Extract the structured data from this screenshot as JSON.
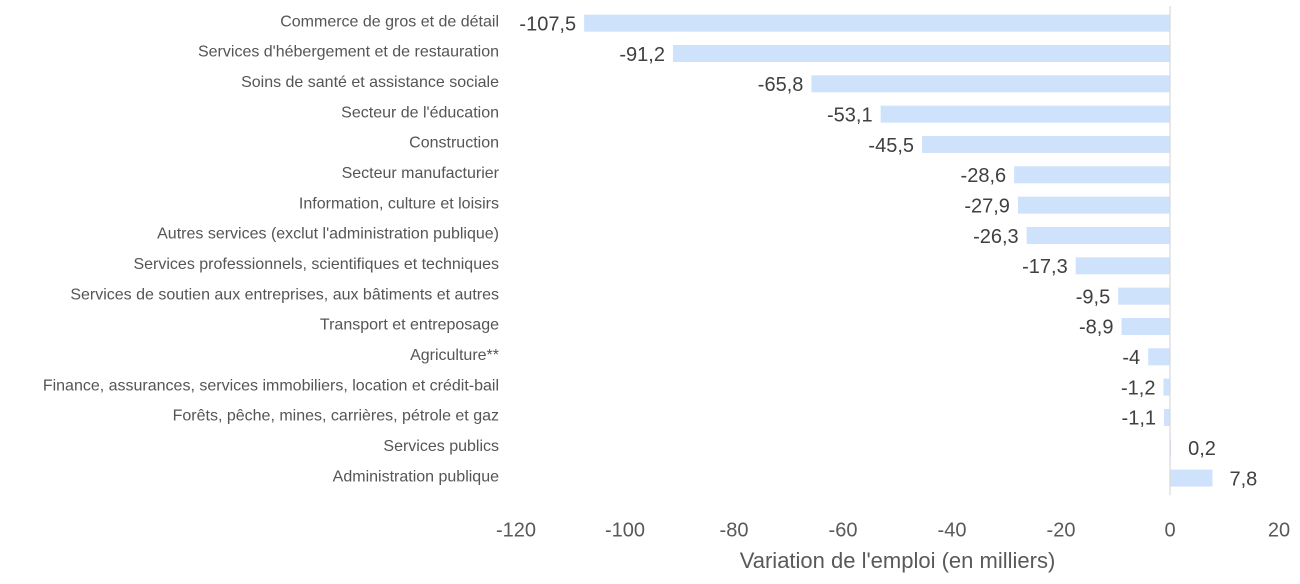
{
  "chart_data": {
    "type": "bar",
    "orientation": "horizontal",
    "categories": [
      "Commerce de gros et de détail",
      "Services d'hébergement et de restauration",
      "Soins de santé et assistance sociale",
      "Secteur de l'éducation",
      "Construction",
      "Secteur manufacturier",
      "Information, culture et loisirs",
      "Autres services (exclut l'administration publique)",
      "Services professionnels, scientifiques et techniques",
      "Services de soutien aux entreprises, aux bâtiments et autres",
      "Transport et entreposage",
      "Agriculture**",
      "Finance, assurances, services immobiliers, location et crédit-bail",
      "Forêts, pêche, mines, carrières, pétrole et gaz",
      "Services publics",
      "Administration publique"
    ],
    "values": [
      -107.5,
      -91.2,
      -65.8,
      -53.1,
      -45.5,
      -28.6,
      -27.9,
      -26.3,
      -17.3,
      -9.5,
      -8.9,
      -4,
      -1.2,
      -1.1,
      0.2,
      7.8
    ],
    "value_labels": [
      "-107,5",
      "-91,2",
      "-65,8",
      "-53,1",
      "-45,5",
      "-28,6",
      "-27,9",
      "-26,3",
      "-17,3",
      "-9,5",
      "-8,9",
      "-4",
      "-1,2",
      "-1,1",
      "0,2",
      "7,8"
    ],
    "xlabel": "Variation de l'emploi (en milliers)",
    "xlim": [
      -120,
      20
    ],
    "xticks": [
      -120,
      -100,
      -80,
      -60,
      -40,
      -20,
      0,
      20
    ],
    "xtick_labels": [
      "-120",
      "-100",
      "-80",
      "-60",
      "-40",
      "-20",
      "0",
      "20"
    ],
    "grid": false,
    "colors": {
      "bar": "#cfe2fc",
      "zero_line": "#d9d9d9"
    }
  }
}
